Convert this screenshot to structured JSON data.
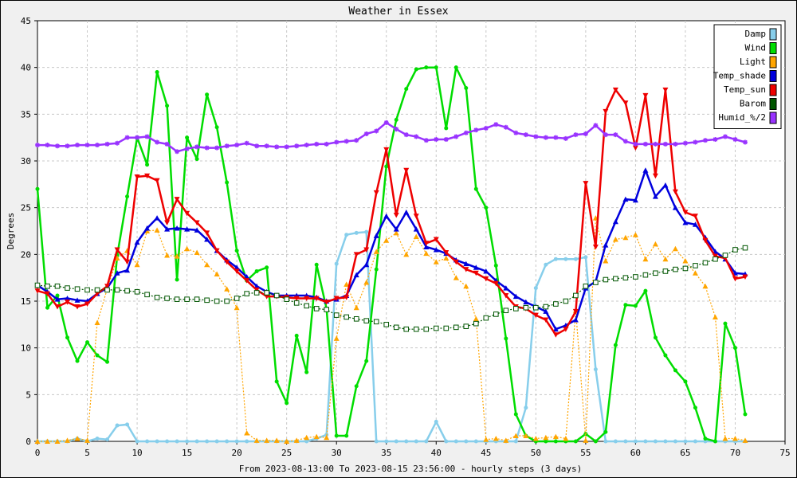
{
  "chart_data": {
    "type": "line",
    "title": "Weather in Essex",
    "xlabel": "From 2023-08-13:00 To 2023-08-15 23:56:00 - hourly steps (3 days)",
    "ylabel": "Degrees",
    "xlim": [
      0,
      75
    ],
    "ylim": [
      0,
      45
    ],
    "x_ticks": [
      0,
      5,
      10,
      15,
      20,
      25,
      30,
      35,
      40,
      45,
      50,
      55,
      60,
      65,
      70,
      75
    ],
    "y_ticks": [
      0,
      5,
      10,
      15,
      20,
      25,
      30,
      35,
      40,
      45
    ],
    "grid": true,
    "legend_position": "top-right",
    "series": [
      {
        "name": "Damp",
        "color": "#87ceeb",
        "values": [
          0,
          0,
          0,
          0,
          0.3,
          0,
          0.3,
          0.2,
          1.7,
          1.8,
          0,
          0,
          0,
          0,
          0,
          0,
          0,
          0,
          0,
          0,
          0,
          0,
          0,
          0,
          0,
          0,
          0,
          0,
          0.3,
          0.7,
          19,
          22.1,
          22.3,
          22.4,
          0,
          0,
          0,
          0,
          0,
          0,
          2.1,
          0,
          0,
          0,
          0,
          0,
          0,
          0,
          0,
          3.6,
          16.4,
          18.9,
          19.5,
          19.5,
          19.5,
          19.7,
          7.7,
          0,
          0,
          0,
          0,
          0,
          0,
          0,
          0,
          0,
          0,
          0,
          0,
          0,
          0,
          0
        ]
      },
      {
        "name": "Wind",
        "color": "#00dd00",
        "values": [
          27,
          14.3,
          15.6,
          11.1,
          8.6,
          10.6,
          9.2,
          8.5,
          19.9,
          26.2,
          32.5,
          29.6,
          39.5,
          35.9,
          17.3,
          32.5,
          30.2,
          37.1,
          33.6,
          27.7,
          20.4,
          17.2,
          18.2,
          18.6,
          6.4,
          4.1,
          11.3,
          7.4,
          18.9,
          14.2,
          0.6,
          0.6,
          5.9,
          8.6,
          18.4,
          29.4,
          34.4,
          37.7,
          39.8,
          40.0,
          40.0,
          33.5,
          40.0,
          37.8,
          27.0,
          25.0,
          18.8,
          11.0,
          2.9,
          0.6,
          0,
          0,
          0,
          0,
          0,
          0.8,
          0,
          1.0,
          10.3,
          14.6,
          14.5,
          16.1,
          11.1,
          9.2,
          7.6,
          6.4,
          3.6,
          0.3,
          0,
          12.6,
          10.0,
          2.9
        ]
      },
      {
        "name": "Light",
        "color": "#ffa500",
        "values": [
          0,
          0,
          0,
          0.1,
          0.3,
          0.1,
          12.7,
          16.3,
          19.6,
          20.4,
          18.9,
          22.5,
          22.6,
          19.9,
          19.8,
          20.6,
          20.2,
          18.9,
          17.9,
          16.3,
          14.3,
          0.9,
          0.1,
          0.1,
          0.1,
          0,
          0.1,
          0.4,
          0.5,
          0.4,
          11.0,
          16.8,
          14.3,
          17.0,
          20.3,
          21.5,
          22.3,
          20.0,
          21.9,
          20.1,
          19.2,
          19.6,
          17.5,
          16.6,
          13.1,
          0.2,
          0.3,
          0.1,
          0.6,
          0.6,
          0.3,
          0.4,
          0.5,
          0.3,
          14.0,
          0.1,
          23.9,
          19.3,
          21.6,
          21.8,
          22.1,
          19.5,
          21.1,
          19.5,
          20.6,
          19.3,
          18.0,
          16.6,
          13.3,
          0.3,
          0.3,
          0.1
        ]
      },
      {
        "name": "Temp_shade",
        "color": "#0000dd",
        "values": [
          16.7,
          16.0,
          15.2,
          15.3,
          15.1,
          15.0,
          15.8,
          16.4,
          18.0,
          18.3,
          21.3,
          22.8,
          23.9,
          22.7,
          22.8,
          22.7,
          22.6,
          21.6,
          20.4,
          19.4,
          18.6,
          17.6,
          16.6,
          16.0,
          15.6,
          15.6,
          15.6,
          15.6,
          15.4,
          15.0,
          15.2,
          15.6,
          17.8,
          18.9,
          22.0,
          24.1,
          22.7,
          24.5,
          22.7,
          20.8,
          20.5,
          20.1,
          19.4,
          19.0,
          18.6,
          18.2,
          17.2,
          16.4,
          15.5,
          14.9,
          14.4,
          13.9,
          12.0,
          12.4,
          13.0,
          16.4,
          17.1,
          21.0,
          23.5,
          25.9,
          25.8,
          29.0,
          26.2,
          27.4,
          25.0,
          23.4,
          23.2,
          21.8,
          20.3,
          19.5,
          18.0,
          17.9
        ]
      },
      {
        "name": "Temp_sun",
        "color": "#ee0000",
        "values": [
          16.1,
          15.8,
          14.4,
          14.9,
          14.4,
          14.7,
          15.8,
          16.6,
          20.5,
          19.2,
          28.3,
          28.4,
          27.9,
          23.4,
          25.9,
          24.4,
          23.4,
          22.3,
          20.4,
          19.2,
          18.2,
          17.2,
          16.2,
          15.5,
          15.5,
          15.4,
          15.3,
          15.3,
          15.3,
          14.9,
          15.3,
          15.4,
          20.0,
          20.5,
          26.6,
          31.2,
          24.2,
          29.0,
          24.1,
          21.2,
          21.6,
          20.2,
          19.2,
          18.4,
          18.0,
          17.4,
          16.9,
          15.6,
          14.4,
          14.2,
          13.5,
          13.0,
          11.4,
          12.0,
          13.9,
          27.6,
          20.8,
          35.3,
          37.6,
          36.2,
          31.4,
          37.0,
          28.4,
          37.6,
          26.7,
          24.5,
          24.1,
          21.5,
          19.8,
          19.6,
          17.4,
          17.6
        ]
      },
      {
        "name": "Barom",
        "color": "#005500",
        "values": [
          16.7,
          16.6,
          16.6,
          16.4,
          16.3,
          16.2,
          16.2,
          16.2,
          16.2,
          16.1,
          16.0,
          15.7,
          15.4,
          15.3,
          15.2,
          15.2,
          15.2,
          15.1,
          15.0,
          15.0,
          15.3,
          15.8,
          15.9,
          15.9,
          15.6,
          15.2,
          14.8,
          14.5,
          14.2,
          14.1,
          13.5,
          13.3,
          13.1,
          12.9,
          12.8,
          12.5,
          12.2,
          12.0,
          12.0,
          12.0,
          12.1,
          12.1,
          12.2,
          12.3,
          12.6,
          13.2,
          13.6,
          14.0,
          14.2,
          14.3,
          14.3,
          14.4,
          14.7,
          15.0,
          15.6,
          16.6,
          17.0,
          17.3,
          17.4,
          17.5,
          17.6,
          17.8,
          18.0,
          18.2,
          18.4,
          18.5,
          18.8,
          19.1,
          19.5,
          19.9,
          20.5,
          20.7
        ]
      },
      {
        "name": "Humid_%/2",
        "color": "#9933ff",
        "values": [
          31.7,
          31.7,
          31.6,
          31.6,
          31.7,
          31.7,
          31.7,
          31.8,
          31.9,
          32.5,
          32.5,
          32.6,
          32.0,
          31.8,
          31.0,
          31.3,
          31.5,
          31.4,
          31.4,
          31.6,
          31.7,
          31.9,
          31.6,
          31.6,
          31.5,
          31.5,
          31.6,
          31.7,
          31.8,
          31.8,
          32.0,
          32.1,
          32.2,
          32.9,
          33.2,
          34.1,
          33.4,
          32.8,
          32.6,
          32.2,
          32.3,
          32.3,
          32.6,
          33.0,
          33.3,
          33.5,
          33.9,
          33.6,
          33.0,
          32.8,
          32.6,
          32.5,
          32.5,
          32.4,
          32.8,
          32.9,
          33.8,
          32.8,
          32.8,
          32.1,
          31.8,
          31.8,
          31.8,
          31.8,
          31.8,
          31.9,
          32.0,
          32.2,
          32.3,
          32.6,
          32.3,
          32.0
        ]
      }
    ]
  }
}
